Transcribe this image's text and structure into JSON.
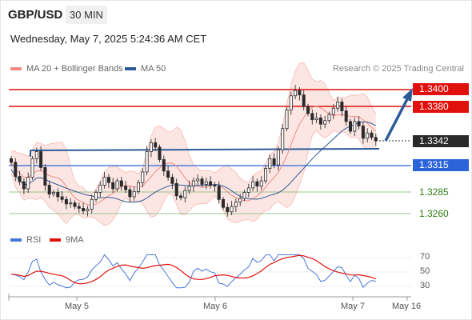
{
  "header": {
    "symbol": "GBP/USD",
    "timeframe": "30 MIN",
    "timestamp": "Wednesday, May 7, 2025 5:24:36 AM CET"
  },
  "legend": {
    "ma20": "MA 20 + Bollinger Bands",
    "ma50": "MA 50",
    "ma20_color": "#f08a80",
    "ma50_color": "#2d5b98"
  },
  "credit": "Research © 2025 Trading Central",
  "price_levels": [
    {
      "label": "1.3400",
      "style": "red"
    },
    {
      "label": "1.3380",
      "style": "red"
    },
    {
      "label": "1.3342",
      "style": "dark"
    },
    {
      "label": "1.3315",
      "style": "blue"
    },
    {
      "label": "1.3285",
      "style": "green"
    },
    {
      "label": "1.3260",
      "style": "green"
    }
  ],
  "rsi": {
    "label": "RSI",
    "ma_label": "9MA",
    "rsi_color": "#4a78d6",
    "ma_color": "#e0100c",
    "ticks": [
      "70",
      "50",
      "30"
    ]
  },
  "dates": [
    "May 5",
    "May 6",
    "May 7",
    "May 16"
  ],
  "chart_data": {
    "type": "candlestick",
    "title": "GBP/USD",
    "timeframe": "30 MIN",
    "current_price": 1.3342,
    "resistance": [
      1.34,
      1.338
    ],
    "support": [
      1.3315,
      1.3285,
      1.326
    ],
    "rsi_ticks": [
      70,
      50,
      30
    ],
    "x_ticks": [
      "May 5",
      "May 6",
      "May 7",
      "May 16"
    ],
    "close": [
      1.3318,
      1.3302,
      1.3296,
      1.3288,
      1.3301,
      1.3322,
      1.333,
      1.3312,
      1.3292,
      1.3282,
      1.3284,
      1.3279,
      1.3276,
      1.3271,
      1.3272,
      1.3268,
      1.3266,
      1.3263,
      1.3265,
      1.3276,
      1.3284,
      1.3292,
      1.3301,
      1.3295,
      1.3288,
      1.3297,
      1.3291,
      1.3287,
      1.3279,
      1.3285,
      1.3295,
      1.3307,
      1.333,
      1.334,
      1.3335,
      1.3321,
      1.3308,
      1.3301,
      1.3294,
      1.328,
      1.3278,
      1.3286,
      1.3291,
      1.3297,
      1.3299,
      1.3293,
      1.3296,
      1.3292,
      1.3291,
      1.3276,
      1.3267,
      1.3262,
      1.3268,
      1.3273,
      1.3277,
      1.3284,
      1.3289,
      1.3296,
      1.3291,
      1.3297,
      1.3311,
      1.3322,
      1.3315,
      1.3332,
      1.3356,
      1.3377,
      1.3393,
      1.3399,
      1.3394,
      1.3381,
      1.3373,
      1.3366,
      1.3368,
      1.3361,
      1.3365,
      1.3372,
      1.3379,
      1.3386,
      1.3376,
      1.3364,
      1.3353,
      1.3364,
      1.3359,
      1.3345,
      1.3351,
      1.3346,
      1.3342
    ]
  }
}
